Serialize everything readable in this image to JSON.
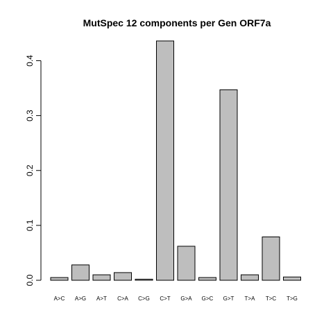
{
  "chart_data": {
    "type": "bar",
    "title": "MutSpec 12 components per Gen ORF7a",
    "xlabel": "",
    "ylabel": "",
    "categories": [
      "A>C",
      "A>G",
      "A>T",
      "C>A",
      "C>G",
      "C>T",
      "G>A",
      "G>C",
      "G>T",
      "T>A",
      "T>C",
      "T>G"
    ],
    "values": [
      0.005,
      0.028,
      0.01,
      0.014,
      0.002,
      0.436,
      0.062,
      0.005,
      0.347,
      0.01,
      0.079,
      0.006
    ],
    "ylim": [
      0,
      0.436
    ],
    "yticks": [
      0.0,
      0.1,
      0.2,
      0.3,
      0.4
    ],
    "ytick_labels": [
      "0.0",
      "0.1",
      "0.2",
      "0.3",
      "0.4"
    ],
    "bar_color": "#bebebe",
    "grid": false,
    "legend": "none"
  }
}
